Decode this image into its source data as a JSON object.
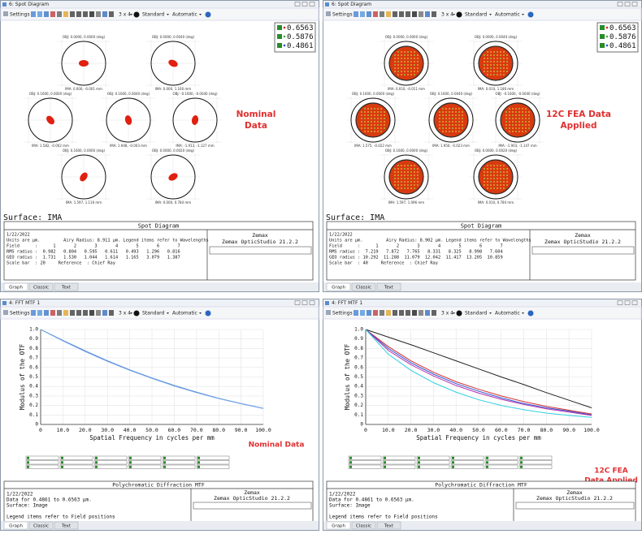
{
  "windows": [
    {
      "title": "6: Spot Diagram",
      "toolbar": {
        "settings": "Settings",
        "layout": "3 x 4",
        "mode": "Standard",
        "scale": "Automatic"
      },
      "legend": [
        "0.6563",
        "0.5876",
        "0.4861"
      ],
      "spots": [
        {
          "top": "OBJ: 0.0000, 0.0000 (deg)",
          "bottom": "IMA: 0.000, -0.001 mm"
        },
        {
          "top": "OBJ: 0.0000, 0.0040 (deg)",
          "bottom": "IMA: 0.000, 1.160 mm"
        },
        {
          "top": "OBJ: 0.1600, 0.0000 (deg)",
          "bottom": "IMA: 1.582, -0.002 mm"
        },
        {
          "top": "OBJ: 0.1600, 0.0040 (deg)",
          "bottom": "IMA: 1.948, -0.003 mm"
        },
        {
          "top": "OBJ: -0.1600, -0.0040 (deg)",
          "bottom": "IMA: -1.913, -1.127 mm"
        },
        {
          "top": "OBJ: 0.1600, 0.0000 (deg)",
          "bottom": "IMA: 1.597, 1.116 mm"
        },
        {
          "top": "OBJ: 0.0000, 0.0020 (deg)",
          "bottom": "IMA: 0.000, 0.784 mm"
        }
      ],
      "annotation": [
        "Nominal",
        "Data"
      ],
      "surface": "Surface: IMA",
      "info": {
        "title": "Spot Diagram",
        "lines": [
          "1/22/2022",
          "Units are µm.         Airy Radius: 8.911 µm. Legend items refer to Wavelengths",
          "Field      :      1       2       3       4       5       6       7",
          "RMS radius :  0.982   0.804   0.595   0.611   0.493   1.296   0.816",
          "GEO radius :  1.731   1.530   1.044   1.614   1.165   3.079   1.387",
          "Scale bar  : 20     Reference  : Chief Ray"
        ],
        "brand": "Zemax",
        "product": "Zemax OpticStudio 21.2.2"
      },
      "tabs": [
        "Graph",
        "Classic",
        "Text"
      ]
    },
    {
      "title": "6: Spot Diagram",
      "toolbar": {
        "settings": "Settings",
        "layout": "3 x 4",
        "mode": "Standard",
        "scale": "Automatic"
      },
      "legend": [
        "0.6563",
        "0.5876",
        "0.4861"
      ],
      "spots": [
        {
          "top": "OBJ: 0.0000, 0.0000 (deg)",
          "bottom": "IMA: 0.010, -0.011 mm"
        },
        {
          "top": "OBJ: 0.0000, 0.0040 (deg)",
          "bottom": "IMA: 0.010, 1.180 mm"
        },
        {
          "top": "OBJ: 0.1600, 0.0000 (deg)",
          "bottom": "IMA: 1.575, -0.022 mm"
        },
        {
          "top": "OBJ: 0.1600, 0.0040 (deg)",
          "bottom": "IMA: 1.950, -0.023 mm"
        },
        {
          "top": "OBJ: -0.1600, -0.0040 (deg)",
          "bottom": "IMA: -1.903, -1.147 mm"
        },
        {
          "top": "OBJ: 0.1600, 0.0000 (deg)",
          "bottom": "IMA: 1.597, 1.096 mm"
        },
        {
          "top": "OBJ: 0.0000, 0.0020 (deg)",
          "bottom": "IMA: 0.010, 0.784 mm"
        }
      ],
      "annotation": [
        "12C FEA Data",
        "Applied"
      ],
      "surface": "Surface: IMA",
      "info": {
        "title": "Spot Diagram",
        "lines": [
          "1/22/2022",
          "Units are µm.         Airy Radius: 8.902 µm. Legend items refer to Wavelengths",
          "Field      :      1       2       3       4       5       6       7",
          "RMS radius :  7.219   7.872   7.765   8.331   8.325   8.998   7.604",
          "GEO radius : 10.292  11.288  11.079  12.042  11.417  13.205  10.859",
          "Scale bar  : 40     Reference  : Chief Ray"
        ],
        "brand": "Zemax",
        "product": "Zemax OpticStudio 21.2.2"
      },
      "tabs": [
        "Graph",
        "Classic",
        "Text"
      ]
    },
    {
      "title": "4: FFT MTF 1",
      "toolbar": {
        "settings": "Settings",
        "layout": "3 x 4",
        "mode": "Standard",
        "scale": "Automatic"
      },
      "chart_data": {
        "type": "line",
        "xlabel": "Spatial Frequency in cycles per mm",
        "ylabel": "Modulus of the OTF",
        "x": [
          0,
          10,
          20,
          30,
          40,
          50,
          60,
          70,
          80,
          90,
          100
        ],
        "series": [
          {
            "color": "#4a7fd6",
            "values": [
              1,
              0.885,
              0.775,
              0.67,
              0.575,
              0.49,
              0.41,
              0.34,
              0.275,
              0.22,
              0.17
            ]
          },
          {
            "color": "#79a9ea",
            "values": [
              1,
              0.88,
              0.768,
              0.664,
              0.57,
              0.485,
              0.405,
              0.335,
              0.272,
              0.218,
              0.168
            ]
          }
        ],
        "xlim": [
          0,
          100
        ],
        "ylim": [
          0,
          1
        ],
        "xticks": [
          0,
          {
            "value": 10,
            "label": "10.0"
          },
          {
            "value": 20,
            "label": "20.0"
          },
          {
            "value": 30,
            "label": "30.0"
          },
          {
            "value": 40,
            "label": "40.0"
          },
          {
            "value": 50,
            "label": "50.0"
          },
          {
            "value": 60,
            "label": "60.0"
          },
          {
            "value": 70,
            "label": "70.0"
          },
          {
            "value": 80,
            "label": "80.0"
          },
          {
            "value": 90,
            "label": "90.0"
          },
          {
            "value": 100,
            "label": "100.0"
          }
        ],
        "yticks": [
          0,
          0.1,
          0.2,
          0.3,
          0.4,
          0.5,
          0.6,
          0.7,
          0.8,
          0.9,
          {
            "value": 1,
            "label": "1.0"
          }
        ],
        "grid": true
      },
      "annotation": [
        "Nominal Data"
      ],
      "info": {
        "title": "Polychromatic Diffraction MTF",
        "lines": [
          "1/22/2022",
          "Data for 0.4861 to 0.6563 µm.",
          "Surface: Image",
          "",
          "Legend items refer to Field positions"
        ],
        "brand": "Zemax",
        "product": "Zemax OpticStudio 21.2.2"
      },
      "tabs": [
        "Graph",
        "Classic",
        "Text"
      ]
    },
    {
      "title": "4: FFT MTF 1",
      "toolbar": {
        "settings": "Settings",
        "layout": "3 x 4",
        "mode": "Standard",
        "scale": "Automatic"
      },
      "chart_data": {
        "type": "line",
        "xlabel": "Spatial Frequency in cycles per mm",
        "ylabel": "Modulus of the OTF",
        "x": [
          0,
          10,
          20,
          30,
          40,
          50,
          60,
          70,
          80,
          90,
          100
        ],
        "series": [
          {
            "color": "#222222",
            "values": [
              1,
              0.92,
              0.84,
              0.755,
              0.67,
              0.585,
              0.5,
              0.42,
              0.335,
              0.255,
              0.175
            ]
          },
          {
            "color": "#d03030",
            "values": [
              1,
              0.82,
              0.67,
              0.55,
              0.45,
              0.37,
              0.3,
              0.24,
              0.19,
              0.15,
              0.11
            ]
          },
          {
            "color": "#3050d0",
            "values": [
              1,
              0.8,
              0.65,
              0.53,
              0.43,
              0.35,
              0.28,
              0.22,
              0.175,
              0.14,
              0.1
            ]
          },
          {
            "color": "#b030b0",
            "values": [
              1,
              0.78,
              0.63,
              0.51,
              0.41,
              0.33,
              0.265,
              0.21,
              0.165,
              0.13,
              0.095
            ]
          },
          {
            "color": "#30d0e0",
            "values": [
              1,
              0.74,
              0.57,
              0.44,
              0.34,
              0.26,
              0.2,
              0.155,
              0.12,
              0.095,
              0.075
            ]
          }
        ],
        "xlim": [
          0,
          100
        ],
        "ylim": [
          0,
          1
        ],
        "xticks": [
          0,
          {
            "value": 10,
            "label": "10.0"
          },
          {
            "value": 20,
            "label": "20.0"
          },
          {
            "value": 30,
            "label": "30.0"
          },
          {
            "value": 40,
            "label": "40.0"
          },
          {
            "value": 50,
            "label": "50.0"
          },
          {
            "value": 60,
            "label": "60.0"
          },
          {
            "value": 70,
            "label": "70.0"
          },
          {
            "value": 80,
            "label": "80.0"
          },
          {
            "value": 90,
            "label": "90.0"
          },
          {
            "value": 100,
            "label": "100.0"
          }
        ],
        "yticks": [
          0,
          0.1,
          0.2,
          0.3,
          0.4,
          0.5,
          0.6,
          0.7,
          0.8,
          0.9,
          {
            "value": 1,
            "label": "1.0"
          }
        ],
        "grid": true
      },
      "annotation": [
        "12C FEA",
        "Data Applied"
      ],
      "info": {
        "title": "Polychromatic Diffraction MTF",
        "lines": [
          "1/22/2022",
          "Data for 0.4861 to 0.6563 µm.",
          "Surface: Image",
          "",
          "Legend items refer to Field positions"
        ],
        "brand": "Zemax",
        "product": "Zemax OpticStudio 21.2.2"
      },
      "tabs": [
        "Graph",
        "Classic",
        "Text"
      ]
    }
  ]
}
